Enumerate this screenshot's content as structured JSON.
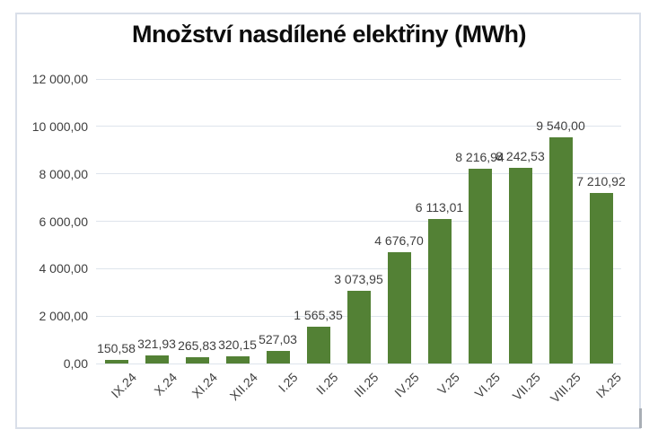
{
  "chart_data": {
    "type": "bar",
    "title": "Množství nasdílené elektřiny (MWh)",
    "categories": [
      "IX.24",
      "X.24",
      "XI.24",
      "XII.24",
      "I.25",
      "II.25",
      "III.25",
      "IV.25",
      "V.25",
      "VI.25",
      "VII.25",
      "VIII.25",
      "IX.25"
    ],
    "values": [
      150.58,
      321.93,
      265.83,
      320.15,
      527.03,
      1565.35,
      3073.95,
      4676.7,
      6113.01,
      8216.94,
      8242.53,
      9540.0,
      7210.92
    ],
    "data_labels": [
      "150,58",
      "321,93",
      "265,83",
      "320,15",
      "527,03",
      "1 565,35",
      "3 073,95",
      "4 676,70",
      "6 113,01",
      "8 216,94",
      "8 242,53",
      "9 540,00",
      "7 210,92"
    ],
    "y_ticks": [
      "0,00",
      "2 000,00",
      "4 000,00",
      "6 000,00",
      "8 000,00",
      "10 000,00",
      "12 000,00"
    ],
    "ylim": [
      0,
      12000
    ],
    "xlabel": "",
    "ylabel": "",
    "grid": true,
    "legend": "none",
    "bar_color": "#538135",
    "gridline_color": "#dee4ec",
    "axis_label_color": "#404040",
    "title_color": "#0d0d0d"
  }
}
